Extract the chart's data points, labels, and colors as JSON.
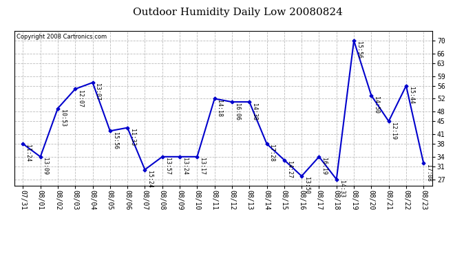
{
  "title": "Outdoor Humidity Daily Low 20080824",
  "copyright": "Copyright 2008 Cartronics.com",
  "line_color": "#0000cc",
  "marker_color": "#0000cc",
  "bg_color": "#ffffff",
  "plot_bg_color": "#ffffff",
  "grid_color": "#bbbbbb",
  "x_labels": [
    "07/31",
    "08/01",
    "08/02",
    "08/03",
    "08/04",
    "08/05",
    "08/06",
    "08/07",
    "08/08",
    "08/09",
    "08/10",
    "08/11",
    "08/12",
    "08/13",
    "08/14",
    "08/15",
    "08/16",
    "08/17",
    "08/18",
    "08/19",
    "08/20",
    "08/21",
    "08/22",
    "08/23"
  ],
  "y_values": [
    38,
    34,
    49,
    55,
    57,
    42,
    43,
    30,
    34,
    34,
    34,
    52,
    51,
    51,
    38,
    33,
    28,
    34,
    27,
    70,
    53,
    45,
    56,
    32
  ],
  "time_labels": [
    "11:24",
    "13:09",
    "10:53",
    "12:07",
    "13:07",
    "15:56",
    "11:33",
    "15:24",
    "13:57",
    "13:24",
    "13:17",
    "14:18",
    "16:06",
    "14:38",
    "17:28",
    "14:27",
    "13:50",
    "16:19",
    "14:33",
    "15:56",
    "14:50",
    "12:19",
    "15:44",
    "17:08"
  ],
  "yticks": [
    27,
    31,
    34,
    38,
    41,
    45,
    48,
    52,
    56,
    59,
    63,
    66,
    70
  ],
  "ylim_min": 25,
  "ylim_max": 73,
  "title_fontsize": 11,
  "label_fontsize": 6.0,
  "tick_fontsize": 7,
  "copyright_fontsize": 6
}
